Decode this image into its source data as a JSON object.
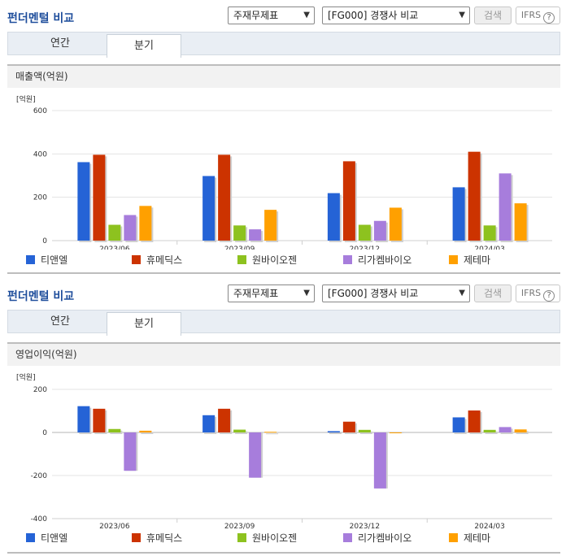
{
  "panels": [
    {
      "title": "펀더멘털 비교",
      "select1": "주재무제표",
      "select2": "[FG000] 경쟁사 비교",
      "search_label": "검색",
      "ifrs_label": "IFRS",
      "help_label": "?",
      "tabs": [
        "연간",
        "분기"
      ],
      "active_tab": "분기",
      "section_title": "매출액(억원)"
    },
    {
      "title": "펀더멘털 비교",
      "select1": "주재무제표",
      "select2": "[FG000] 경쟁사 비교",
      "search_label": "검색",
      "ifrs_label": "IFRS",
      "help_label": "?",
      "tabs": [
        "연간",
        "분기"
      ],
      "active_tab": "분기",
      "section_title": "영업이익(억원)"
    }
  ],
  "colors": [
    "#2563d6",
    "#cc3300",
    "#8dc21f",
    "#a77ddc",
    "#ffa000"
  ],
  "chart_data": [
    {
      "type": "bar",
      "title": "매출액(억원)",
      "unit_label": "[억원]",
      "categories": [
        "2023/06",
        "2023/09",
        "2023/12",
        "2024/03"
      ],
      "yticks": [
        0,
        200,
        400,
        600
      ],
      "ylim": [
        0,
        600
      ],
      "grid": true,
      "legend_position": "bottom",
      "series": [
        {
          "name": "티앤엘",
          "values": [
            362,
            298,
            219,
            246
          ]
        },
        {
          "name": "휴메딕스",
          "values": [
            396,
            396,
            366,
            410
          ]
        },
        {
          "name": "원바이오젠",
          "values": [
            73,
            70,
            73,
            70
          ]
        },
        {
          "name": "리가켐바이오",
          "values": [
            118,
            52,
            91,
            310
          ]
        },
        {
          "name": "제테마",
          "values": [
            160,
            142,
            152,
            172
          ]
        }
      ]
    },
    {
      "type": "bar",
      "title": "영업이익(억원)",
      "unit_label": "[억원]",
      "categories": [
        "2023/06",
        "2023/09",
        "2023/12",
        "2024/03"
      ],
      "yticks": [
        -400,
        -200,
        0,
        200
      ],
      "ylim": [
        -400,
        200
      ],
      "grid": true,
      "legend_position": "bottom",
      "series": [
        {
          "name": "티앤엘",
          "values": [
            122,
            80,
            6,
            70
          ]
        },
        {
          "name": "휴메딕스",
          "values": [
            110,
            110,
            50,
            102
          ]
        },
        {
          "name": "원바이오젠",
          "values": [
            16,
            13,
            12,
            12
          ]
        },
        {
          "name": "리가켐바이오",
          "values": [
            -178,
            -210,
            -260,
            25
          ]
        },
        {
          "name": "제테마",
          "values": [
            8,
            3,
            -2,
            14
          ]
        }
      ]
    }
  ]
}
